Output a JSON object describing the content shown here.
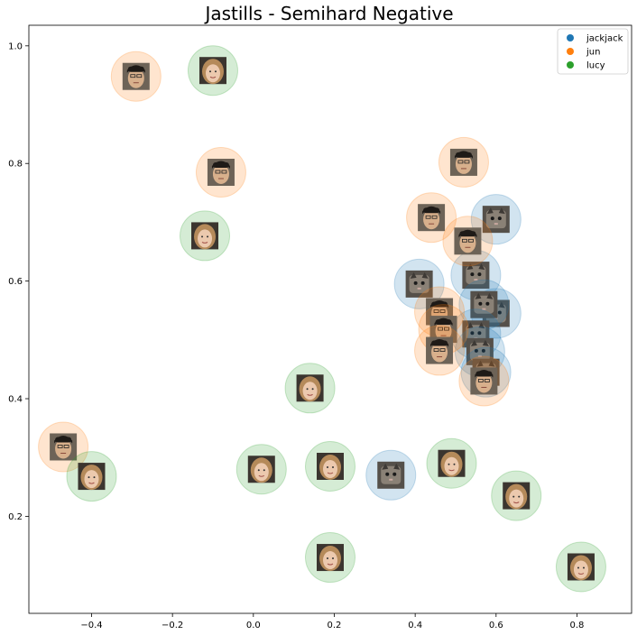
{
  "chart_data": {
    "type": "scatter",
    "title": "Jastills - Semihard Negative",
    "xlabel": "",
    "ylabel": "",
    "xlim": [
      -0.555,
      0.935
    ],
    "ylim": [
      0.035,
      1.035
    ],
    "xticks": [
      -0.4,
      -0.2,
      0.0,
      0.2,
      0.4,
      0.6,
      0.8
    ],
    "xtick_labels": [
      "−0.4",
      "−0.2",
      "0.0",
      "0.2",
      "0.4",
      "0.6",
      "0.8"
    ],
    "yticks": [
      0.2,
      0.4,
      0.6,
      0.8,
      1.0
    ],
    "ytick_labels": [
      "0.2",
      "0.4",
      "0.6",
      "0.8",
      "1.0"
    ],
    "legend_position": "top-right",
    "series": [
      {
        "name": "jackjack",
        "color": "#1f77b4",
        "image": "cat-face",
        "points": [
          {
            "x": 0.6,
            "y": 0.705
          },
          {
            "x": 0.41,
            "y": 0.595
          },
          {
            "x": 0.55,
            "y": 0.61
          },
          {
            "x": 0.6,
            "y": 0.545
          },
          {
            "x": 0.57,
            "y": 0.56
          },
          {
            "x": 0.55,
            "y": 0.51
          },
          {
            "x": 0.56,
            "y": 0.48
          },
          {
            "x": 0.575,
            "y": 0.445
          },
          {
            "x": 0.34,
            "y": 0.27
          }
        ]
      },
      {
        "name": "jun",
        "color": "#ff7f0e",
        "image": "man-face",
        "points": [
          {
            "x": -0.29,
            "y": 0.948
          },
          {
            "x": -0.08,
            "y": 0.785
          },
          {
            "x": 0.52,
            "y": 0.802
          },
          {
            "x": 0.44,
            "y": 0.708
          },
          {
            "x": 0.53,
            "y": 0.668
          },
          {
            "x": 0.46,
            "y": 0.548
          },
          {
            "x": 0.47,
            "y": 0.518
          },
          {
            "x": 0.46,
            "y": 0.482
          },
          {
            "x": 0.57,
            "y": 0.43
          },
          {
            "x": -0.47,
            "y": 0.318
          }
        ]
      },
      {
        "name": "lucy",
        "color": "#2ca02c",
        "image": "woman-face",
        "points": [
          {
            "x": -0.1,
            "y": 0.958
          },
          {
            "x": -0.12,
            "y": 0.677
          },
          {
            "x": 0.14,
            "y": 0.418
          },
          {
            "x": -0.4,
            "y": 0.268
          },
          {
            "x": 0.02,
            "y": 0.28
          },
          {
            "x": 0.19,
            "y": 0.285
          },
          {
            "x": 0.49,
            "y": 0.29
          },
          {
            "x": 0.65,
            "y": 0.235
          },
          {
            "x": 0.19,
            "y": 0.13
          },
          {
            "x": 0.81,
            "y": 0.114
          }
        ]
      }
    ]
  }
}
